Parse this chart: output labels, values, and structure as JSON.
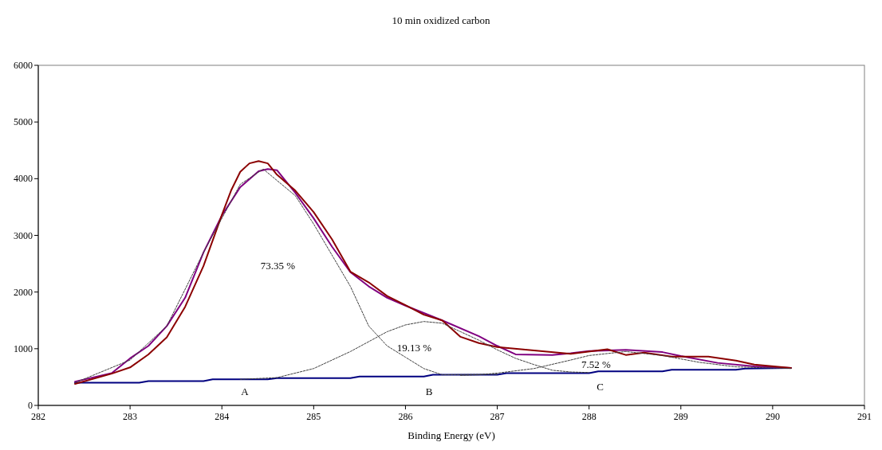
{
  "chart_data": {
    "type": "line",
    "title": "10 min oxidized carbon",
    "xlabel": "Binding Energy (eV)",
    "xlim": [
      282,
      291
    ],
    "xticks": [
      282,
      283,
      284,
      285,
      286,
      287,
      288,
      289,
      290,
      291
    ],
    "ylim": [
      0,
      6000
    ],
    "yticks": [
      0,
      1000,
      2000,
      3000,
      4000,
      5000,
      6000
    ],
    "grid": false,
    "series": [
      {
        "color": "#404040",
        "line_style": "dashed",
        "x": [
          282.4,
          283.0,
          283.4,
          283.8,
          284.0,
          284.2,
          284.45,
          284.8,
          285.0,
          285.4,
          285.6,
          285.8,
          286.0,
          286.2,
          286.4,
          287.0
        ],
        "values": [
          400,
          800,
          1400,
          2700,
          3300,
          3900,
          4170,
          3700,
          3200,
          2100,
          1400,
          1050,
          850,
          650,
          540,
          550
        ]
      },
      {
        "color": "#404040",
        "line_style": "dashed",
        "x": [
          284.2,
          284.6,
          285.0,
          285.4,
          285.8,
          286.0,
          286.2,
          286.4,
          286.6,
          286.8,
          287.0,
          287.2,
          287.4,
          287.6,
          287.8,
          288.0
        ],
        "values": [
          460,
          490,
          650,
          950,
          1300,
          1420,
          1480,
          1450,
          1300,
          1150,
          980,
          830,
          720,
          620,
          590,
          580
        ]
      },
      {
        "color": "#404040",
        "line_style": "dashed",
        "x": [
          286.6,
          286.8,
          287.0,
          287.4,
          287.8,
          288.0,
          288.4,
          288.8,
          289.2,
          289.6,
          290.2
        ],
        "values": [
          530,
          540,
          570,
          650,
          800,
          880,
          950,
          880,
          760,
          680,
          650
        ]
      },
      {
        "color": "#000080",
        "x": [
          282.4,
          283.1,
          283.2,
          283.8,
          283.9,
          284.5,
          284.6,
          285.4,
          285.5,
          286.2,
          286.3,
          287.0,
          287.1,
          288.0,
          288.1,
          288.8,
          288.9,
          289.6,
          289.7,
          290.2
        ],
        "values": [
          400,
          400,
          430,
          430,
          460,
          460,
          480,
          480,
          510,
          510,
          540,
          540,
          570,
          570,
          600,
          600,
          630,
          630,
          650,
          660
        ]
      },
      {
        "color": "#800080",
        "x": [
          282.4,
          282.8,
          283.0,
          283.2,
          283.4,
          283.6,
          283.8,
          284.0,
          284.2,
          284.4,
          284.5,
          284.6,
          284.8,
          285.0,
          285.2,
          285.4,
          285.6,
          285.8,
          286.0,
          286.4,
          286.8,
          287.0,
          287.2,
          287.6,
          287.8,
          288.0,
          288.4,
          288.8,
          289.0,
          289.4,
          289.8,
          290.2
        ],
        "values": [
          420,
          570,
          830,
          1050,
          1400,
          1900,
          2700,
          3350,
          3850,
          4130,
          4170,
          4150,
          3750,
          3300,
          2800,
          2350,
          2100,
          1900,
          1760,
          1500,
          1220,
          1050,
          900,
          890,
          920,
          960,
          980,
          940,
          870,
          750,
          690,
          660
        ]
      },
      {
        "color": "#8b0000",
        "x": [
          282.4,
          282.8,
          283.0,
          283.2,
          283.4,
          283.6,
          283.8,
          284.0,
          284.1,
          284.2,
          284.3,
          284.4,
          284.5,
          284.6,
          284.8,
          285.0,
          285.2,
          285.4,
          285.6,
          285.8,
          286.0,
          286.2,
          286.4,
          286.6,
          286.8,
          287.0,
          287.4,
          287.8,
          288.2,
          288.4,
          288.6,
          288.9,
          289.3,
          289.6,
          289.8,
          290.2
        ],
        "values": [
          380,
          560,
          670,
          900,
          1200,
          1740,
          2460,
          3360,
          3790,
          4120,
          4270,
          4310,
          4270,
          4070,
          3790,
          3410,
          2930,
          2360,
          2170,
          1930,
          1770,
          1600,
          1500,
          1210,
          1100,
          1030,
          970,
          910,
          990,
          890,
          930,
          860,
          860,
          790,
          720,
          660
        ]
      }
    ],
    "annotations": [
      "73.35 %",
      "19.13 %",
      "7.52 %",
      "A",
      "B",
      "C"
    ]
  }
}
